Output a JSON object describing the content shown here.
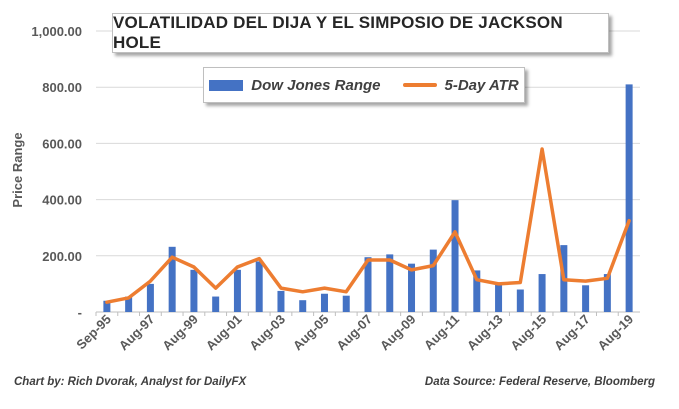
{
  "colors": {
    "bar": "#4472c4",
    "line": "#ed7d31",
    "grid": "#d9d9d9",
    "text": "#595959"
  },
  "footer": {
    "credit": "Chart by: Rich Dvorak, Analyst for DailyFX",
    "source": "Data Source: Federal Reserve, Bloomberg"
  },
  "chart_data": {
    "type": "bar",
    "title": "VOLATILIDAD DEL DIJA Y EL SIMPOSIO DE JACKSON HOLE",
    "xlabel": "",
    "ylabel": "Price Range",
    "ylim": [
      0,
      1000
    ],
    "yticks": [
      "-",
      "200.00",
      "400.00",
      "600.00",
      "800.00",
      "1,000.00"
    ],
    "grid": true,
    "legend_position": "top-center",
    "categories": [
      "Sep-95",
      "Aug-96",
      "Aug-97",
      "Aug-98",
      "Aug-99",
      "Aug-00",
      "Aug-01",
      "Aug-02",
      "Aug-03",
      "Aug-04",
      "Aug-05",
      "Aug-06",
      "Aug-07",
      "Aug-08",
      "Aug-09",
      "Aug-10",
      "Aug-11",
      "Aug-12",
      "Aug-13",
      "Aug-14",
      "Aug-15",
      "Aug-16",
      "Aug-17",
      "Aug-18",
      "Aug-19"
    ],
    "tick_labels": [
      "Sep-95",
      "",
      "Aug-97",
      "",
      "Aug-99",
      "",
      "Aug-01",
      "",
      "Aug-03",
      "",
      "Aug-05",
      "",
      "Aug-07",
      "",
      "Aug-09",
      "",
      "Aug-11",
      "",
      "Aug-13",
      "",
      "Aug-15",
      "",
      "Aug-17",
      "",
      "Aug-19"
    ],
    "series": [
      {
        "name": "Dow Jones Range",
        "type": "bar",
        "values": [
          40,
          55,
          100,
          232,
          150,
          55,
          150,
          180,
          75,
          42,
          65,
          58,
          195,
          205,
          172,
          222,
          398,
          148,
          100,
          80,
          135,
          238,
          95,
          135,
          810
        ]
      },
      {
        "name": "5-Day ATR",
        "type": "line",
        "values": [
          35,
          50,
          110,
          195,
          160,
          85,
          160,
          190,
          85,
          72,
          85,
          72,
          185,
          185,
          150,
          165,
          285,
          115,
          100,
          105,
          580,
          115,
          110,
          120,
          325
        ]
      }
    ]
  }
}
